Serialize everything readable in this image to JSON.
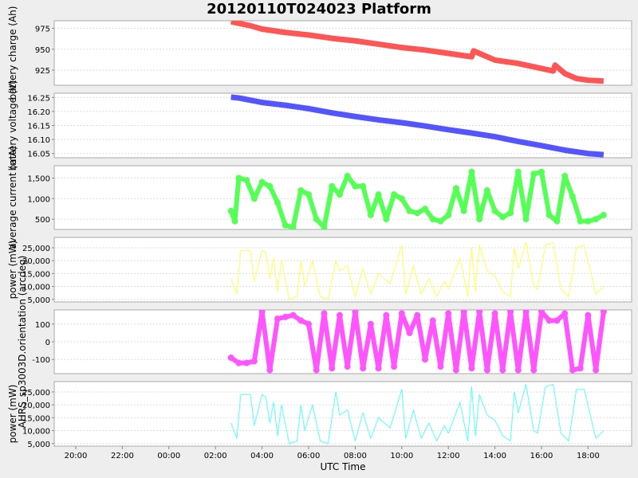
{
  "title": "20120110T024023 Platform",
  "x_axis": {
    "label": "UTC Time",
    "ticks": [
      "20:00",
      "22:00",
      "00:00",
      "02:00",
      "04:00",
      "06:00",
      "08:00",
      "10:00",
      "12:00",
      "14:00",
      "16:00",
      "18:00"
    ]
  },
  "chart_data": [
    {
      "type": "line",
      "title": "20120110T024023 Platform",
      "ylabel": "battery charge (Ah)",
      "xlabel": "UTC Time",
      "color": "#ff5555",
      "yticks": [
        925,
        950,
        975
      ],
      "ytick_labels": [
        "925",
        "950",
        "975"
      ],
      "ylim": [
        907,
        984
      ],
      "x": [
        "02:40",
        "03:00",
        "03:30",
        "04:00",
        "05:00",
        "06:00",
        "07:00",
        "08:00",
        "09:00",
        "10:00",
        "11:00",
        "12:00",
        "13:00",
        "13:05",
        "14:00",
        "15:00",
        "16:00",
        "16:30",
        "16:35",
        "17:00",
        "17:30",
        "18:00",
        "18:40"
      ],
      "values": [
        983,
        981,
        978,
        974,
        970,
        967,
        963,
        960,
        956,
        952,
        949,
        945,
        941,
        948,
        937,
        933,
        927,
        924,
        931,
        921,
        915,
        913,
        912
      ],
      "grid": true
    },
    {
      "type": "line",
      "ylabel": "battery voltage (V)",
      "color": "#5555ff",
      "yticks": [
        16.05,
        16.1,
        16.15,
        16.2,
        16.25
      ],
      "ytick_labels": [
        "16.05",
        "16.10",
        "16.15",
        "16.20",
        "16.25"
      ],
      "ylim": [
        16.035,
        16.265
      ],
      "x": [
        "02:40",
        "03:00",
        "04:00",
        "05:00",
        "06:00",
        "07:00",
        "08:00",
        "09:00",
        "10:00",
        "11:00",
        "12:00",
        "13:00",
        "14:00",
        "15:00",
        "16:00",
        "17:00",
        "18:00",
        "18:40"
      ],
      "values": [
        16.251,
        16.248,
        16.232,
        16.222,
        16.21,
        16.195,
        16.182,
        16.17,
        16.16,
        16.148,
        16.135,
        16.123,
        16.11,
        16.093,
        16.078,
        16.062,
        16.05,
        16.046
      ],
      "grid": true
    },
    {
      "type": "scatter",
      "ylabel": "average current (mA)",
      "color": "#55ff55",
      "yticks": [
        500,
        1000,
        1500
      ],
      "ytick_labels": [
        "500",
        "1,000",
        "1,500"
      ],
      "ylim": [
        250,
        1800
      ],
      "x": [
        "02:40",
        "02:50",
        "03:00",
        "03:20",
        "03:40",
        "04:00",
        "04:20",
        "04:40",
        "05:00",
        "05:20",
        "05:40",
        "06:00",
        "06:20",
        "06:40",
        "07:00",
        "07:20",
        "07:40",
        "08:00",
        "08:20",
        "08:40",
        "09:00",
        "09:20",
        "09:40",
        "10:00",
        "10:20",
        "10:40",
        "11:00",
        "11:20",
        "11:40",
        "12:00",
        "12:20",
        "12:40",
        "13:00",
        "13:20",
        "13:40",
        "14:00",
        "14:20",
        "14:40",
        "15:00",
        "15:20",
        "15:40",
        "16:00",
        "16:20",
        "16:40",
        "17:00",
        "17:20",
        "17:40",
        "18:00",
        "18:20",
        "18:40"
      ],
      "values": [
        700,
        450,
        1500,
        1450,
        1000,
        1400,
        1300,
        900,
        350,
        300,
        1200,
        1100,
        500,
        300,
        1300,
        1100,
        1550,
        1300,
        1300,
        600,
        1100,
        500,
        1100,
        1000,
        700,
        650,
        750,
        500,
        450,
        600,
        1250,
        700,
        1650,
        500,
        1200,
        700,
        550,
        650,
        1650,
        500,
        1600,
        1650,
        600,
        450,
        1550,
        1050,
        450,
        450,
        500,
        600
      ],
      "grid": true
    },
    {
      "type": "line",
      "ylabel": "power (mW)",
      "color": "#ffff55",
      "yticks": [
        5000,
        10000,
        15000,
        20000,
        25000
      ],
      "ytick_labels": [
        "5,000",
        "10,000",
        "15,000",
        "20,000",
        "25,000"
      ],
      "ylim": [
        4000,
        29000
      ],
      "x": [
        "02:40",
        "02:55",
        "03:05",
        "03:30",
        "03:40",
        "04:00",
        "04:10",
        "04:20",
        "04:30",
        "04:40",
        "04:50",
        "05:10",
        "05:30",
        "05:40",
        "05:50",
        "06:10",
        "06:30",
        "06:50",
        "07:10",
        "07:20",
        "07:40",
        "08:00",
        "08:20",
        "08:40",
        "09:00",
        "09:30",
        "10:00",
        "10:10",
        "10:30",
        "10:50",
        "11:10",
        "11:30",
        "11:50",
        "12:00",
        "12:30",
        "12:50",
        "13:00",
        "13:10",
        "13:20",
        "13:40",
        "14:00",
        "14:20",
        "14:40",
        "14:50",
        "15:00",
        "15:20",
        "15:40",
        "15:50",
        "16:10",
        "16:30",
        "16:50",
        "17:10",
        "17:30",
        "17:50",
        "18:20",
        "18:40"
      ],
      "values": [
        13000,
        7000,
        24000,
        24000,
        12000,
        24000,
        23000,
        13000,
        21000,
        8000,
        20000,
        5000,
        6000,
        20000,
        10000,
        20000,
        6000,
        5000,
        20000,
        16000,
        18000,
        6000,
        17000,
        7000,
        15000,
        11000,
        26000,
        7000,
        18000,
        7000,
        13000,
        6000,
        12000,
        9000,
        21000,
        6000,
        25000,
        8000,
        26000,
        16000,
        14000,
        8000,
        6000,
        25000,
        17000,
        27000,
        10000,
        9000,
        26000,
        27000,
        9000,
        6000,
        25000,
        26000,
        7000,
        10000
      ],
      "grid": true
    },
    {
      "type": "scatter",
      "ylabel": "AHRS_sp3003D.orientation (arcdeg)",
      "color": "#ff55ff",
      "yticks": [
        -100,
        0,
        100
      ],
      "ytick_labels": [
        "-100",
        "0",
        "100"
      ],
      "ylim": [
        -180,
        180
      ],
      "x": [
        "02:40",
        "03:00",
        "03:20",
        "03:40",
        "04:00",
        "04:20",
        "04:40",
        "05:00",
        "05:20",
        "05:40",
        "06:00",
        "06:20",
        "06:40",
        "07:00",
        "07:20",
        "07:40",
        "08:00",
        "08:20",
        "08:40",
        "09:00",
        "09:20",
        "09:40",
        "10:00",
        "10:20",
        "10:40",
        "11:00",
        "11:20",
        "11:40",
        "12:00",
        "12:20",
        "12:40",
        "13:00",
        "13:20",
        "13:40",
        "14:00",
        "14:20",
        "14:40",
        "15:00",
        "15:20",
        "15:40",
        "16:00",
        "16:20",
        "16:40",
        "17:00",
        "17:20",
        "17:40",
        "18:00",
        "18:20",
        "18:40"
      ],
      "values": [
        -90,
        -120,
        -120,
        -110,
        170,
        -160,
        130,
        140,
        150,
        120,
        100,
        -160,
        160,
        -150,
        150,
        -140,
        170,
        -150,
        100,
        -150,
        150,
        -140,
        160,
        50,
        150,
        -100,
        120,
        -140,
        160,
        -160,
        170,
        -150,
        170,
        -160,
        160,
        -160,
        170,
        -160,
        170,
        -160,
        170,
        120,
        120,
        160,
        -160,
        -150,
        150,
        -160,
        170
      ],
      "grid": true
    },
    {
      "type": "line",
      "ylabel": "power (mW)",
      "color": "#55ffff",
      "yticks": [
        5000,
        10000,
        15000,
        20000,
        25000
      ],
      "ytick_labels": [
        "5,000",
        "10,000",
        "15,000",
        "20,000",
        "25,000"
      ],
      "ylim": [
        4000,
        29000
      ],
      "x": [
        "02:40",
        "02:55",
        "03:05",
        "03:30",
        "03:40",
        "04:00",
        "04:10",
        "04:20",
        "04:30",
        "04:40",
        "04:50",
        "05:10",
        "05:30",
        "05:40",
        "05:50",
        "06:10",
        "06:30",
        "06:50",
        "07:10",
        "07:20",
        "07:40",
        "08:00",
        "08:20",
        "08:40",
        "09:00",
        "09:30",
        "10:00",
        "10:10",
        "10:30",
        "10:50",
        "11:10",
        "11:30",
        "11:50",
        "12:00",
        "12:30",
        "12:50",
        "13:00",
        "13:10",
        "13:20",
        "13:40",
        "14:00",
        "14:20",
        "14:40",
        "14:50",
        "15:00",
        "15:20",
        "15:40",
        "15:50",
        "16:10",
        "16:30",
        "16:50",
        "17:10",
        "17:30",
        "17:50",
        "18:20",
        "18:40"
      ],
      "values": [
        13000,
        7000,
        24000,
        24000,
        12000,
        24000,
        23000,
        13000,
        21000,
        8000,
        20000,
        5000,
        6000,
        20000,
        10000,
        20000,
        6000,
        5000,
        25000,
        16000,
        18000,
        6000,
        17000,
        7000,
        15000,
        11000,
        26000,
        7000,
        18000,
        7000,
        13000,
        6000,
        12000,
        9000,
        21000,
        6000,
        27000,
        8000,
        24000,
        16000,
        14000,
        8000,
        6000,
        25000,
        17000,
        28000,
        10000,
        9000,
        27000,
        28000,
        9000,
        6000,
        26000,
        26000,
        7000,
        10000
      ],
      "grid": true
    }
  ]
}
